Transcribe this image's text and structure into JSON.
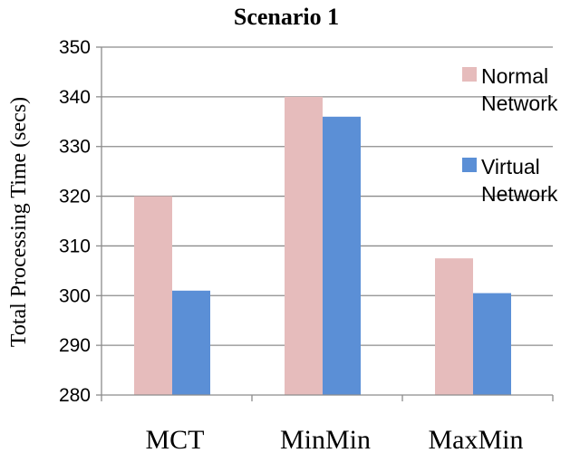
{
  "chart_data": {
    "type": "bar",
    "title": "Scenario 1",
    "xlabel": "",
    "ylabel": "Total Processing Time (secs)",
    "categories": [
      "MCT",
      "MinMin",
      "MaxMin"
    ],
    "series": [
      {
        "name": "Normal Network",
        "values": [
          320.0,
          340.0,
          307.5
        ],
        "color": "#e6bcbc"
      },
      {
        "name": "Virtual Network",
        "values": [
          301.0,
          336.0,
          300.5
        ],
        "color": "#5b8fd6"
      }
    ],
    "ylim": [
      280,
      350
    ],
    "yticks": [
      280,
      290,
      300,
      310,
      320,
      330,
      340,
      350
    ],
    "grid": true,
    "legend_position": "right",
    "legend_lines": [
      [
        "Normal",
        "Network"
      ],
      [
        "Virtual",
        "Network"
      ]
    ]
  }
}
